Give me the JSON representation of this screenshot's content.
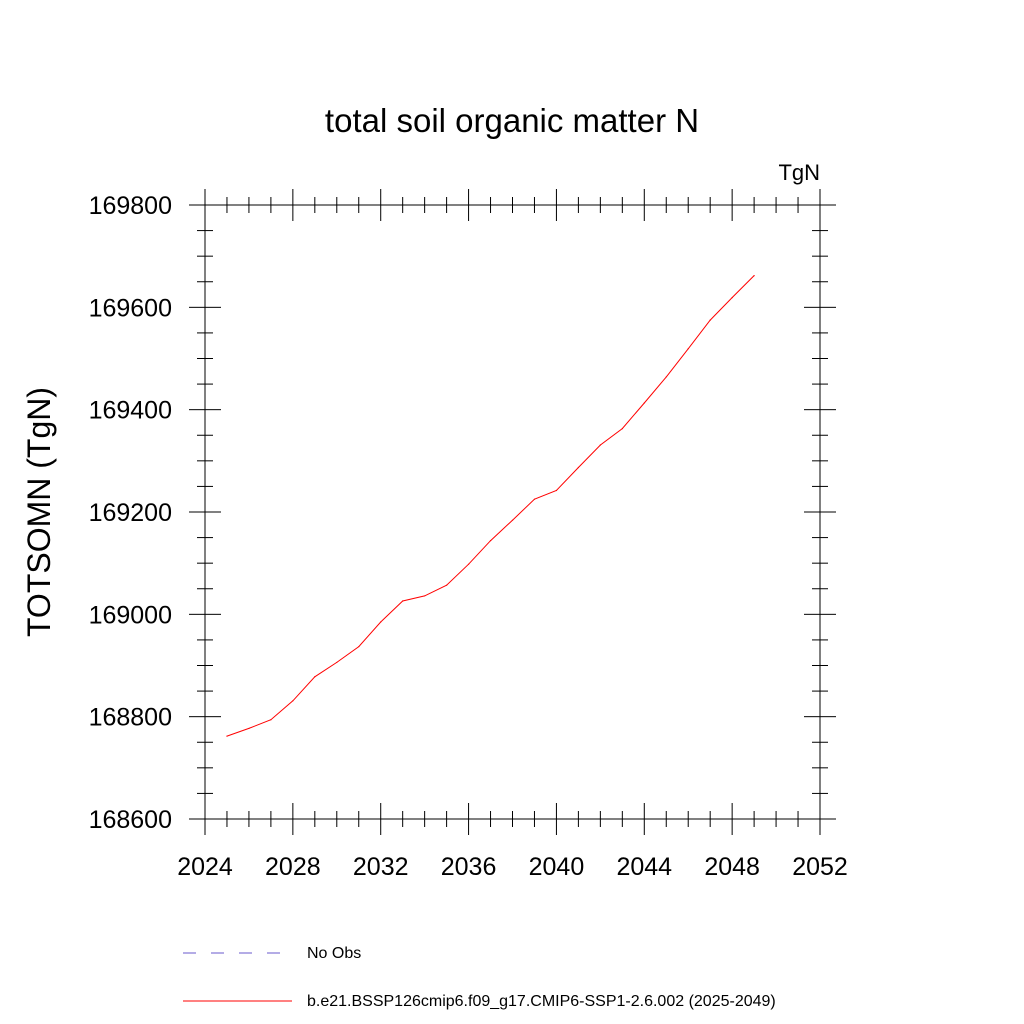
{
  "chart_data": {
    "type": "line",
    "title": "total soil organic matter N",
    "units": "TgN",
    "xlabel": "",
    "ylabel": "TOTSOMN  (TgN)",
    "xlim": [
      2024,
      2052
    ],
    "ylim": [
      168600,
      169800
    ],
    "x_ticks": [
      2024,
      2028,
      2032,
      2036,
      2040,
      2044,
      2048,
      2052
    ],
    "y_ticks": [
      168600,
      168800,
      169000,
      169200,
      169400,
      169600,
      169800
    ],
    "x_minor_step": 1,
    "y_minor_step": 50,
    "series": [
      {
        "name": "b.e21.BSSP126cmip6.f09_g17.CMIP6-SSP1-2.6.002 (2025-2049)",
        "color": "#ff0000",
        "style": "solid",
        "x": [
          2025,
          2026,
          2027,
          2028,
          2029,
          2030,
          2031,
          2032,
          2033,
          2034,
          2035,
          2036,
          2037,
          2038,
          2039,
          2040,
          2041,
          2042,
          2043,
          2044,
          2045,
          2046,
          2047,
          2048,
          2049
        ],
        "y": [
          168762,
          168777,
          168794,
          168831,
          168878,
          168906,
          168937,
          168985,
          169026,
          169036,
          169057,
          169098,
          169144,
          169184,
          169225,
          169242,
          169287,
          169331,
          169363,
          169413,
          169464,
          169519,
          169575,
          169619,
          169662
        ]
      },
      {
        "name": "No Obs",
        "color": "#6a5acd",
        "style": "dashed",
        "x": [],
        "y": []
      }
    ],
    "legend_position": "bottom"
  }
}
